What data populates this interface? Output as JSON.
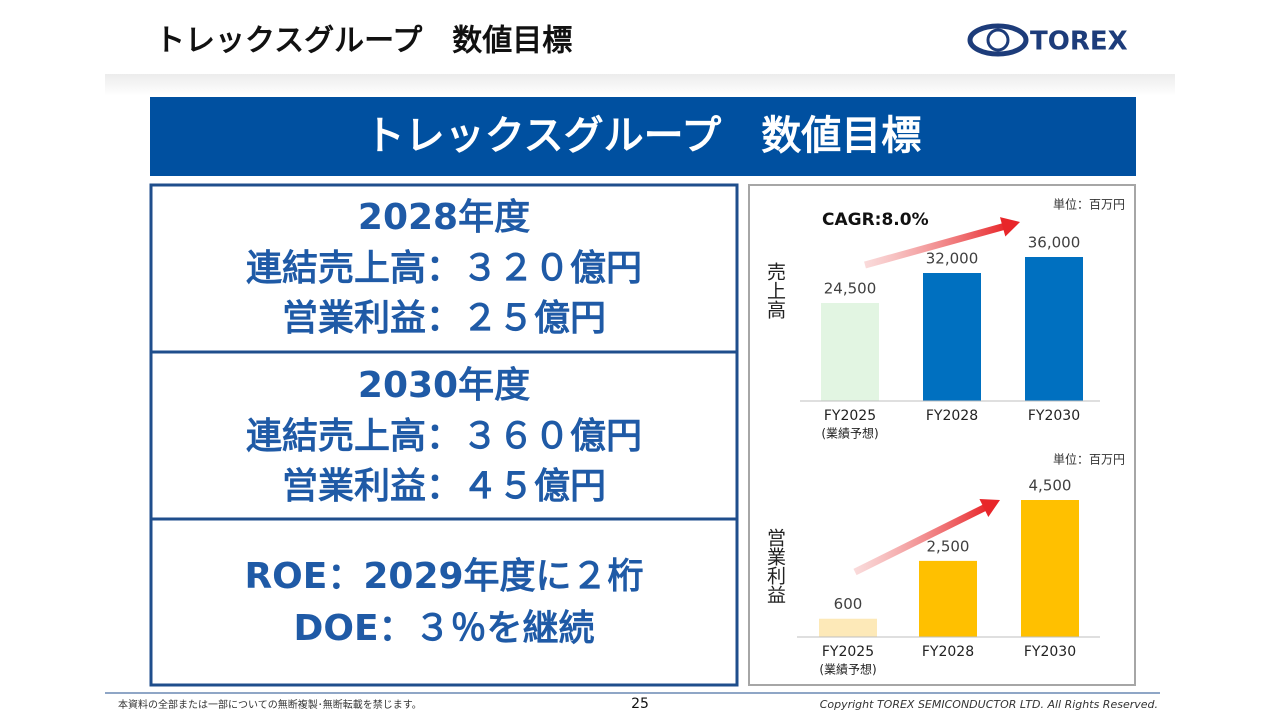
{
  "header": {
    "title": "トレックスグループ　数値目標",
    "logo": "TOREX"
  },
  "banner": "トレックスグループ　数値目標",
  "targets": [
    {
      "year": "2028年度",
      "lines": [
        "連結売上高：３２０億円",
        "営業利益：２５億円"
      ]
    },
    {
      "year": "2030年度",
      "lines": [
        "連結売上高：３６０億円",
        "営業利益：４５億円"
      ]
    },
    {
      "lines": [
        "ROE：2029年度に２桁",
        "DOE：３％を継続"
      ]
    }
  ],
  "chart_data": [
    {
      "type": "bar",
      "ylabel": "売上高",
      "unit": "単位：百万円",
      "annotation": "CAGR:8.0%",
      "categories": [
        "FY2025",
        "FY2028",
        "FY2030"
      ],
      "category_note": "(業績予想)",
      "values": [
        24500,
        32000,
        36000
      ],
      "value_labels": [
        "24,500",
        "32,000",
        "36,000"
      ],
      "colors": [
        "#e2f5e2",
        "#0070c0",
        "#0070c0"
      ]
    },
    {
      "type": "bar",
      "ylabel": "営業利益",
      "unit": "単位：百万円",
      "categories": [
        "FY2025",
        "FY2028",
        "FY2030"
      ],
      "category_note": "(業績予想)",
      "values": [
        600,
        2500,
        4500
      ],
      "value_labels": [
        "600",
        "2,500",
        "4,500"
      ],
      "colors": [
        "#fde9b8",
        "#ffc000",
        "#ffc000"
      ]
    }
  ],
  "footer": {
    "notice": "本資料の全部または一部についての無断複製･無断転載を禁じます。",
    "page": "25",
    "copyright": "Copyright TOREX SEMICONDUCTOR LTD.  All Rights Reserved."
  }
}
